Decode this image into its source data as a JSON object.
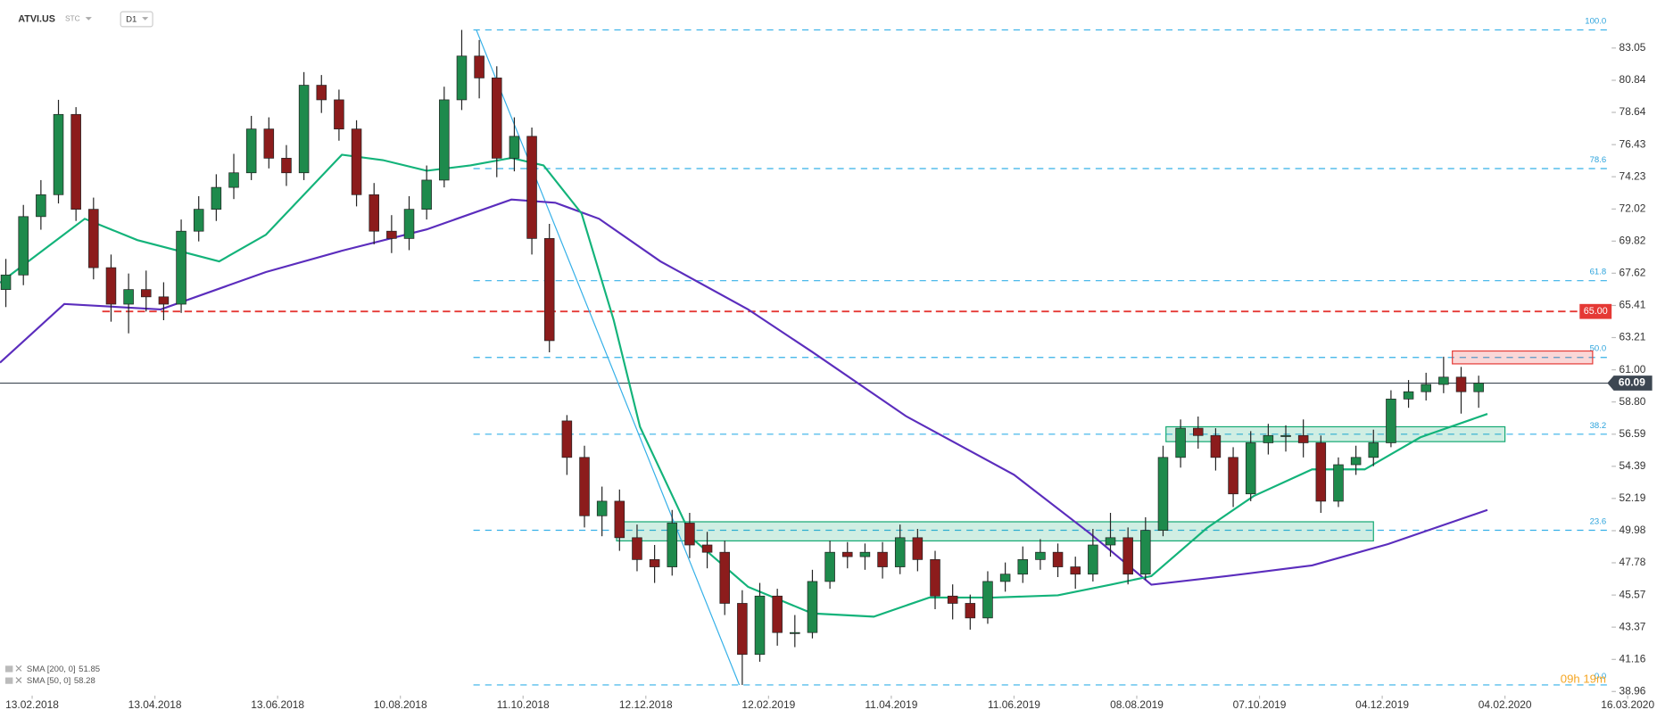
{
  "header": {
    "symbol": "ATVI.US",
    "market": "STC",
    "interval": "D1"
  },
  "chart_data": {
    "type": "candlestick",
    "xlim": [
      0,
      551.5
    ],
    "ylim": [
      38.68,
      86.34
    ],
    "yticks": [
      83.05,
      80.84,
      78.64,
      76.43,
      74.23,
      72.02,
      69.82,
      67.62,
      65.41,
      63.21,
      {
        "value": 61,
        "label": "61.00"
      },
      {
        "value": 58.8,
        "label": "58.80"
      },
      56.59,
      54.39,
      52.19,
      49.98,
      47.78,
      45.57,
      43.37,
      41.16,
      38.96
    ],
    "xticks": [
      {
        "value": 11,
        "label": "13.02.2018"
      },
      {
        "value": 53,
        "label": "13.04.2018"
      },
      {
        "value": 95,
        "label": "13.06.2018"
      },
      {
        "value": 137,
        "label": "10.08.2018"
      },
      {
        "value": 179,
        "label": "11.10.2018"
      },
      {
        "value": 221,
        "label": "12.12.2018"
      },
      {
        "value": 263,
        "label": "12.02.2019"
      },
      {
        "value": 305,
        "label": "11.04.2019"
      },
      {
        "value": 347,
        "label": "11.06.2019"
      },
      {
        "value": 389,
        "label": "08.08.2019"
      },
      {
        "value": 431,
        "label": "07.10.2019"
      },
      {
        "value": 473,
        "label": "04.12.2019"
      },
      {
        "value": 515,
        "label": "04.02.2020"
      },
      {
        "value": 557,
        "label": "16.03.2020"
      }
    ],
    "up_color": "#1e8a4c",
    "down_color": "#8c1c1c",
    "candles": {
      "x": [
        2,
        8,
        14,
        20,
        26,
        32,
        38,
        44,
        50,
        56,
        62,
        68,
        74,
        80,
        86,
        92,
        98,
        104,
        110,
        116,
        122,
        128,
        134,
        140,
        146,
        152,
        158,
        164,
        170,
        176,
        182,
        188,
        194,
        200,
        206,
        212,
        218,
        224,
        230,
        236,
        242,
        248,
        254,
        260,
        266,
        272,
        278,
        284,
        290,
        296,
        302,
        308,
        314,
        320,
        326,
        332,
        338,
        344,
        350,
        356,
        362,
        368,
        374,
        380,
        386,
        392,
        398,
        404,
        410,
        416,
        422,
        428,
        434,
        440,
        446,
        452,
        458,
        464,
        470,
        476,
        482,
        488,
        494,
        500,
        506
      ],
      "open": [
        66.5,
        67.5,
        71.5,
        73,
        78.5,
        72,
        68,
        65.5,
        66.5,
        66,
        65.5,
        70.5,
        72,
        73.5,
        74.5,
        77.5,
        75.5,
        74.5,
        80.5,
        79.5,
        77.5,
        73,
        70.5,
        70,
        72,
        74,
        79.5,
        82.5,
        81,
        75.5,
        77,
        70,
        57.5,
        55,
        51,
        52,
        49.5,
        48,
        47.5,
        50.5,
        49,
        48.5,
        45,
        41.5,
        45.5,
        43,
        43,
        46.5,
        48.5,
        48.2,
        48.5,
        47.5,
        49.5,
        48,
        45.5,
        45,
        44,
        46.5,
        47,
        48,
        48.5,
        47.5,
        47,
        49,
        49.5,
        47,
        50,
        55,
        57,
        56.5,
        55,
        52.5,
        56,
        56.5,
        56.5,
        56,
        52,
        54.5,
        55,
        56,
        59,
        59.5,
        60,
        60.5,
        59.5
      ],
      "high": [
        68.6,
        72.3,
        74,
        79.5,
        79,
        72.8,
        68.9,
        67.6,
        67.8,
        67,
        71.3,
        72.9,
        74.4,
        75.8,
        78.4,
        78.3,
        76.4,
        81.4,
        81.2,
        80.2,
        78.1,
        73.8,
        71.6,
        72.9,
        75,
        80.4,
        84.29,
        83.6,
        81.8,
        78.3,
        77.6,
        71,
        57.9,
        55.8,
        53,
        52.8,
        50.4,
        49,
        51.4,
        51.2,
        49.9,
        49.3,
        45.9,
        46.4,
        46,
        44.2,
        47.3,
        49.3,
        49.2,
        49.1,
        49.2,
        50.4,
        50.1,
        48.6,
        46.3,
        45.6,
        47.2,
        47.8,
        48.9,
        49.4,
        49.1,
        48.2,
        50.1,
        51.2,
        50.2,
        50.9,
        55.8,
        57.6,
        57.8,
        57,
        55.7,
        56.8,
        57.3,
        57.2,
        57.6,
        56.5,
        55,
        55.8,
        56.9,
        59.6,
        60.3,
        60.8,
        61.9,
        61.2,
        60.6
      ],
      "low": [
        65.3,
        66.8,
        70.6,
        72.4,
        71.2,
        67.2,
        64.3,
        63.5,
        65,
        64.4,
        64.9,
        69.8,
        71.2,
        72.7,
        74,
        74.8,
        73.6,
        74,
        78.6,
        76.7,
        72.2,
        69.6,
        69,
        69.2,
        71.3,
        73.5,
        78.8,
        79.6,
        74.2,
        74.6,
        68.9,
        62.2,
        53.8,
        50.2,
        49.6,
        48.6,
        47.2,
        46.4,
        46.9,
        48.1,
        47.4,
        44.2,
        39.41,
        41,
        42.1,
        42,
        42.6,
        46,
        47.4,
        47.3,
        46.7,
        47,
        47.2,
        44.6,
        43.9,
        43.2,
        43.6,
        45.8,
        46.4,
        47.3,
        46.8,
        46,
        46.5,
        48.2,
        46.3,
        46.6,
        49.6,
        54.3,
        55.6,
        54.1,
        51.6,
        52,
        55.2,
        55.4,
        55,
        51.2,
        51.6,
        53.8,
        54.4,
        55.7,
        58.4,
        58.9,
        59.4,
        58,
        58.4
      ],
      "close": [
        67.5,
        71.5,
        73,
        78.5,
        72,
        68,
        65.5,
        66.5,
        66,
        65.5,
        70.5,
        72,
        73.5,
        74.5,
        77.5,
        75.5,
        74.5,
        80.5,
        79.5,
        77.5,
        73,
        70.5,
        70,
        72,
        74,
        79.5,
        82.5,
        81,
        75.5,
        77,
        70,
        63,
        55,
        51,
        52,
        49.5,
        48,
        47.5,
        50.5,
        49,
        48.5,
        45,
        41.5,
        45.5,
        43,
        43,
        46.5,
        48.5,
        48.2,
        48.5,
        47.5,
        49.5,
        48,
        45.5,
        45,
        44,
        46.5,
        47,
        48,
        48.5,
        47.5,
        47,
        49,
        49.5,
        47,
        50,
        55,
        57,
        56.5,
        55,
        52.5,
        56,
        56.5,
        56.5,
        56,
        52,
        54.5,
        55,
        56,
        59,
        59.5,
        60,
        60.5,
        59.5,
        60.09
      ]
    },
    "series": [
      {
        "name": "SMA [200, 0]",
        "legend_value": 51.85,
        "color": "#5b2dbd",
        "x": [
          0,
          22,
          55,
          91,
          117,
          146,
          175,
          190,
          205,
          226,
          256,
          278,
          310,
          347,
          373,
          394,
          420,
          449,
          475,
          509
        ],
        "values": [
          61.49,
          65.51,
          65.14,
          67.7,
          69.16,
          70.62,
          72.67,
          72.45,
          71.35,
          68.43,
          65.14,
          62.22,
          57.83,
          53.81,
          49.79,
          46.28,
          46.87,
          47.6,
          49.06,
          51.4
        ]
      },
      {
        "name": "SMA [50, 0]",
        "legend_value": 58.28,
        "color": "#13b37a",
        "x": [
          0,
          29,
          47,
          75,
          91,
          117,
          131,
          146,
          161,
          175,
          186,
          199,
          210,
          219,
          237,
          256,
          278,
          299,
          318,
          340,
          362,
          380,
          394,
          413,
          429,
          449,
          467,
          486,
          509
        ],
        "values": [
          66.97,
          71.35,
          69.89,
          68.43,
          70.26,
          75.74,
          75.37,
          74.64,
          75.01,
          75.52,
          75.01,
          71.72,
          64.41,
          57.1,
          49.42,
          46.13,
          44.31,
          44.09,
          45.4,
          45.4,
          45.55,
          46.28,
          46.87,
          50.16,
          52.35,
          54.18,
          54.18,
          56.37,
          57.98
        ]
      }
    ],
    "trendline": {
      "x": [
        163,
        253
      ],
      "values": [
        84.29,
        39.41
      ],
      "color": "#35b0e8"
    },
    "fib_levels": {
      "start_x": 162,
      "color": "#35b0e8",
      "levels": [
        {
          "value": 84.29,
          "label": "100.0"
        },
        {
          "value": 74.79,
          "label": "78.6"
        },
        {
          "value": 67.11,
          "label": "61.8"
        },
        {
          "value": 61.85,
          "label": "50.0"
        },
        {
          "value": 56.59,
          "label": "38.2"
        },
        {
          "value": 50.01,
          "label": "23.6"
        },
        {
          "value": 39.41,
          "label": "0.0"
        }
      ]
    },
    "alert_line": {
      "value": 65,
      "label": "65.00",
      "start_x": 35,
      "color": "#e53935"
    },
    "last_price": 60.09,
    "zones": [
      {
        "x": [
          497,
          545
        ],
        "range": [
          61.41,
          62.29
        ],
        "color": "#e53935"
      },
      {
        "x": [
          399,
          515
        ],
        "range": [
          56.08,
          57.1
        ],
        "color": "#13a872"
      },
      {
        "x": [
          211,
          470
        ],
        "range": [
          49.28,
          50.59
        ],
        "color": "#13a872"
      }
    ],
    "countdown": "09h 19m"
  }
}
